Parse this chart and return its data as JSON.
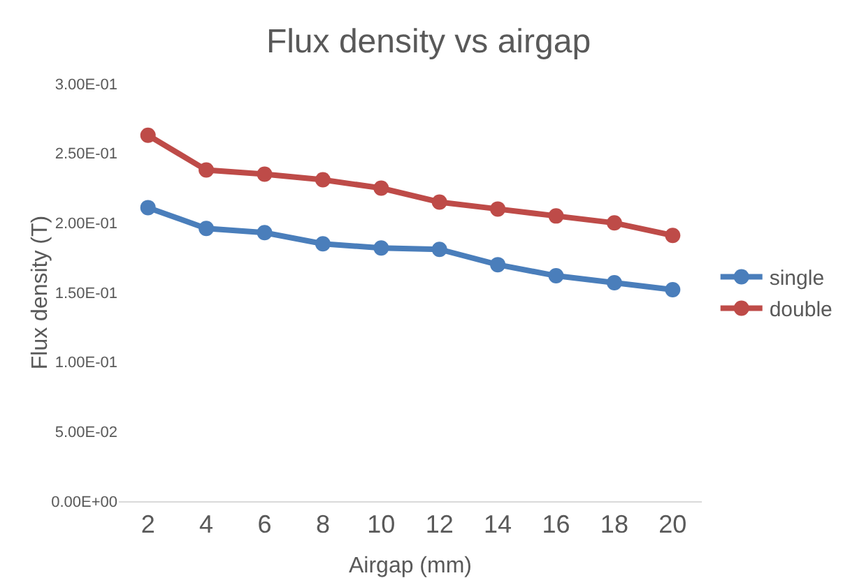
{
  "chart_data": {
    "type": "line",
    "title": "Flux density vs airgap",
    "xlabel": "Airgap (mm)",
    "ylabel": "Flux density (T)",
    "categories": [
      "2",
      "4",
      "6",
      "8",
      "10",
      "12",
      "14",
      "16",
      "18",
      "20"
    ],
    "series": [
      {
        "name": "single",
        "color": "#4a7ebb",
        "values": [
          0.211,
          0.196,
          0.193,
          0.185,
          0.182,
          0.181,
          0.17,
          0.162,
          0.157,
          0.152
        ]
      },
      {
        "name": "double",
        "color": "#be4b48",
        "values": [
          0.263,
          0.238,
          0.235,
          0.231,
          0.225,
          0.215,
          0.21,
          0.205,
          0.2,
          0.191
        ]
      }
    ],
    "ylim": [
      0,
      0.3
    ],
    "yticks": [
      {
        "value": 0,
        "label": "0.00E+00"
      },
      {
        "value": 0.05,
        "label": "5.00E-02"
      },
      {
        "value": 0.1,
        "label": "1.00E-01"
      },
      {
        "value": 0.15,
        "label": "1.50E-01"
      },
      {
        "value": 0.2,
        "label": "2.00E-01"
      },
      {
        "value": 0.25,
        "label": "2.50E-01"
      },
      {
        "value": 0.3,
        "label": "3.00E-01"
      }
    ],
    "grid": false,
    "legend": "right",
    "marker": "circle",
    "line_style": "solid"
  }
}
